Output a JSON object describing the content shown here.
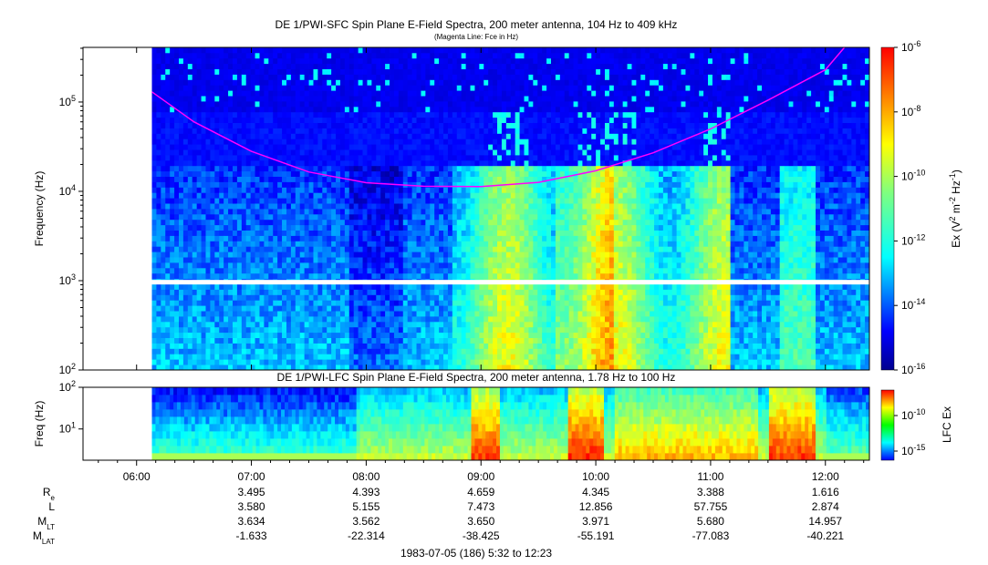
{
  "chart_data": [
    {
      "type": "heatmap",
      "title": "DE 1/PWI-SFC  Spin Plane E-Field Spectra, 200 meter antenna, 104 Hz to 409 kHz",
      "subtitle": "(Magenta Line: Fce in Hz)",
      "ylabel": "Frequency (Hz)",
      "y_scale": "log",
      "ylim": [
        100,
        409000
      ],
      "y_ticks": [
        {
          "value": 100,
          "base": "10",
          "exp": "2"
        },
        {
          "value": 1000,
          "base": "10",
          "exp": "3"
        },
        {
          "value": 10000,
          "base": "10",
          "exp": "4"
        },
        {
          "value": 100000,
          "base": "10",
          "exp": "5"
        }
      ],
      "data_start_time": "06:08",
      "colorbar": {
        "label_parts": [
          "Ex (V",
          "2",
          " m",
          "-2",
          " Hz",
          "-1",
          ")"
        ],
        "scale": "log",
        "range": [
          1e-16,
          1e-06
        ],
        "ticks": [
          {
            "value": 1e-06,
            "base": "10",
            "exp": "-6"
          },
          {
            "value": 1e-08,
            "base": "10",
            "exp": "-8"
          },
          {
            "value": 1e-10,
            "base": "10",
            "exp": "-10"
          },
          {
            "value": 1e-12,
            "base": "10",
            "exp": "-12"
          },
          {
            "value": 1e-14,
            "base": "10",
            "exp": "-14"
          },
          {
            "value": 1e-16,
            "base": "10",
            "exp": "-16"
          }
        ]
      },
      "fce_line": {
        "color": "#ff00ff",
        "times": [
          "06:08",
          "06:30",
          "07:00",
          "07:30",
          "08:00",
          "08:30",
          "09:00",
          "09:30",
          "10:00",
          "10:30",
          "11:00",
          "11:30",
          "12:00",
          "12:10"
        ],
        "values_hz": [
          130000,
          60000,
          28000,
          16500,
          12500,
          11400,
          11300,
          12600,
          17000,
          27000,
          50000,
          105000,
          230000,
          409000
        ]
      },
      "gap_frequency_hz": 950
    },
    {
      "type": "heatmap",
      "title": "DE 1/PWI-LFC  Spin Plane E-Field Spectra, 200 meter antenna, 1.78 Hz to 100 Hz",
      "ylabel": "Freq (Hz)",
      "y_scale": "log",
      "ylim": [
        1.78,
        100
      ],
      "y_ticks": [
        {
          "value": 10,
          "base": "10",
          "exp": "1"
        },
        {
          "value": 100,
          "base": "10",
          "exp": "2"
        }
      ],
      "colorbar": {
        "label": "LFC Ex",
        "scale": "log",
        "ticks": [
          {
            "value": 1e-10,
            "base": "10",
            "exp": "-10"
          },
          {
            "value": 1e-15,
            "base": "10",
            "exp": "-15"
          }
        ]
      }
    }
  ],
  "time_axis": {
    "range": [
      "05:32",
      "12:23"
    ],
    "tick_labels": [
      "06:00",
      "07:00",
      "08:00",
      "09:00",
      "10:00",
      "11:00",
      "12:00"
    ]
  },
  "ephemeris": {
    "rows": [
      {
        "label": "R",
        "sub": "e",
        "values": [
          "3.495",
          "4.393",
          "4.659",
          "4.345",
          "3.388",
          "1.616"
        ]
      },
      {
        "label": "L",
        "sub": "",
        "values": [
          "3.580",
          "5.155",
          "7.473",
          "12.856",
          "57.755",
          "2.874"
        ]
      },
      {
        "label": "M",
        "sub": "LT",
        "values": [
          "3.634",
          "3.562",
          "3.650",
          "3.971",
          "5.680",
          "14.957"
        ]
      },
      {
        "label": "M",
        "sub": "LAT",
        "values": [
          "-1.633",
          "-22.314",
          "-38.425",
          "-55.191",
          "-77.083",
          "-40.221"
        ]
      }
    ]
  },
  "footer": "1983-07-05 (186) 5:32 to 12:23"
}
